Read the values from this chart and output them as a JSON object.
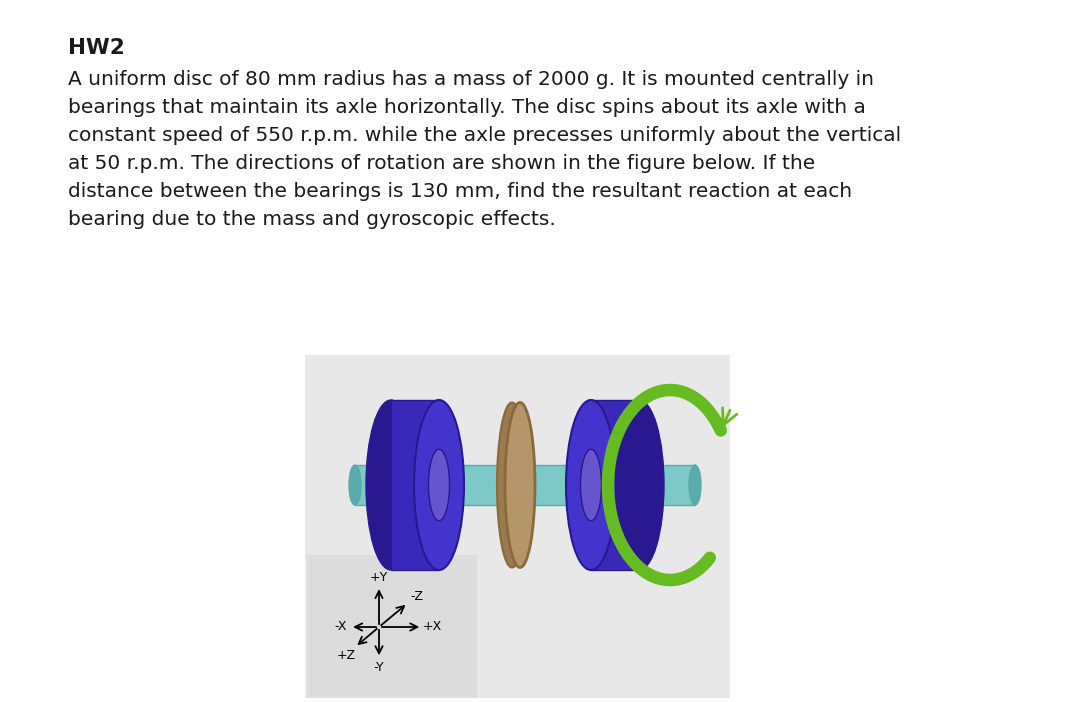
{
  "title": "HW2",
  "line1": "A uniform disc of 80 mm radius has a mass of 2000 g. It is mounted centrally in",
  "line2": "bearings that maintain its axle horizontally. The disc spins about its axle with a",
  "line3": "constant speed of 550 r.p.m. while the axle precesses uniformly about the vertical",
  "line4": "at 50 r.p.m. The directions of rotation are shown in the figure below. If the",
  "line5": "distance between the bearings is 130 mm, find the resultant reaction at each",
  "line6": "bearing due to the mass and gyroscopic effects.",
  "bg_color": "#ffffff",
  "text_color": "#1a1a1a",
  "disc_color": "#b5956a",
  "disc_edge_color": "#8a6a3a",
  "disc_side_color": "#9a7a50",
  "bearing_color": "#3a28bb",
  "bearing_front_color": "#4433cc",
  "bearing_inner_color": "#6655cc",
  "bearing_dark_color": "#2a1890",
  "axle_color": "#7ec8c8",
  "axle_dark_color": "#5aabab",
  "arrow_color": "#66bb22",
  "arrow_color2": "#88dd44",
  "coord_bg": "#dcdcdc",
  "figure_bg": "#e8e8e8",
  "text_fontsize": 14.5,
  "title_fontsize": 15.5
}
